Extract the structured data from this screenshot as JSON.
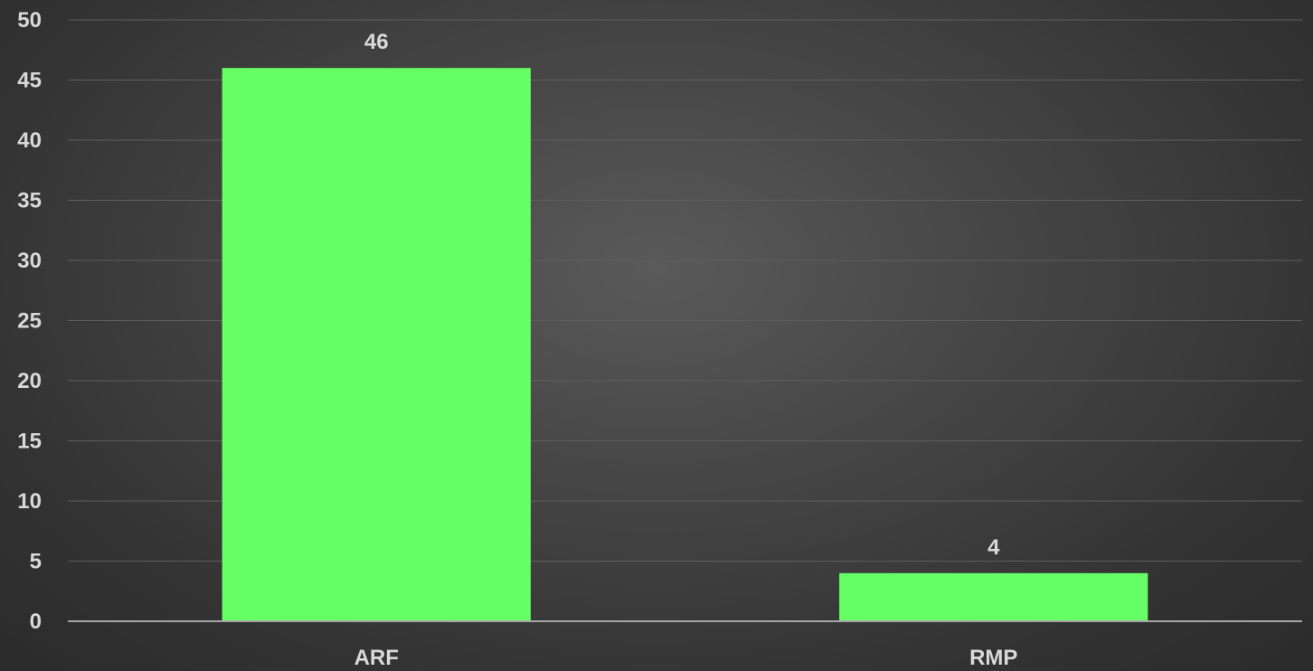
{
  "chart_data": {
    "type": "bar",
    "categories": [
      "ARF",
      "RMP"
    ],
    "values": [
      46,
      4
    ],
    "data_labels": [
      "46",
      "4"
    ],
    "ylim": [
      0,
      50
    ],
    "yticks": [
      0,
      5,
      10,
      15,
      20,
      25,
      30,
      35,
      40,
      45,
      50
    ],
    "ytick_labels": [
      "0",
      "5",
      "10",
      "15",
      "20",
      "25",
      "30",
      "35",
      "40",
      "45",
      "50"
    ],
    "grid": true,
    "legend": "none",
    "colors": {
      "bar": "#66ff66",
      "label": "#d9d9d9",
      "grid": "#5e5e5e",
      "axis": "#a6a6a6"
    }
  }
}
